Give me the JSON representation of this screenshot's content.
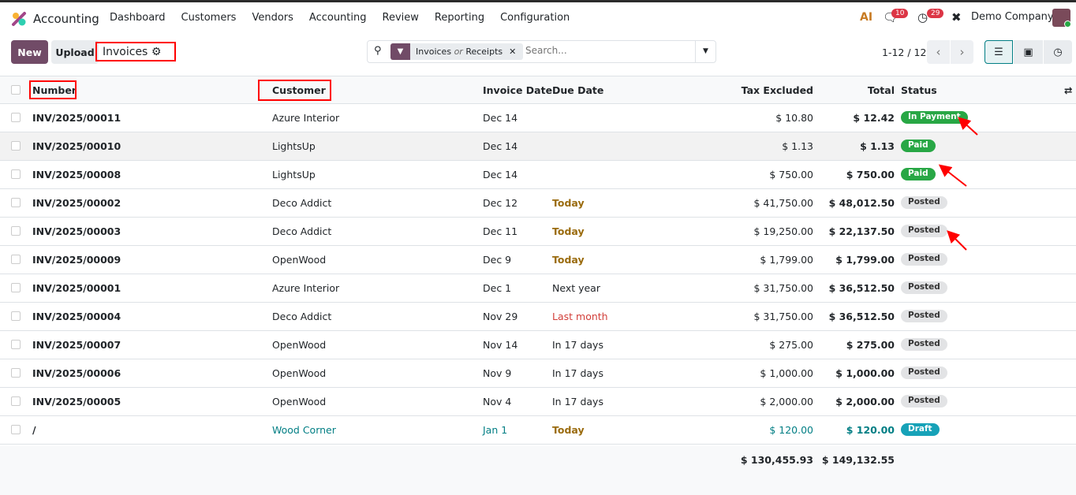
{
  "app": {
    "name": "Accounting",
    "menu": [
      "Dashboard",
      "Customers",
      "Vendors",
      "Accounting",
      "Review",
      "Reporting",
      "Configuration"
    ]
  },
  "systray": {
    "ai_label": "AI",
    "messages_count": "10",
    "activities_count": "29",
    "company": "Demo Company"
  },
  "control": {
    "new_label": "New",
    "upload_label": "Upload",
    "title": "Invoices",
    "search_facet": "Invoices",
    "search_facet_or": "or",
    "search_facet_2": "Receipts",
    "search_placeholder": "Search...",
    "pager": "1-12 / 12"
  },
  "columns": {
    "number": "Number",
    "customer": "Customer",
    "invoice_date": "Invoice Date",
    "due_date": "Due Date",
    "tax_excluded": "Tax Excluded",
    "total": "Total",
    "status": "Status"
  },
  "rows": [
    {
      "number": "INV/2025/00011",
      "customer": "Azure Interior",
      "invoice_date": "Dec 14",
      "due_date": "",
      "tax_excluded": "$ 10.80",
      "total": "$ 12.42",
      "status": "In Payment"
    },
    {
      "number": "INV/2025/00010",
      "customer": "LightsUp",
      "invoice_date": "Dec 14",
      "due_date": "",
      "tax_excluded": "$ 1.13",
      "total": "$ 1.13",
      "status": "Paid"
    },
    {
      "number": "INV/2025/00008",
      "customer": "LightsUp",
      "invoice_date": "Dec 14",
      "due_date": "",
      "tax_excluded": "$ 750.00",
      "total": "$ 750.00",
      "status": "Paid"
    },
    {
      "number": "INV/2025/00002",
      "customer": "Deco Addict",
      "invoice_date": "Dec 12",
      "due_date": "Today",
      "tax_excluded": "$ 41,750.00",
      "total": "$ 48,012.50",
      "status": "Posted"
    },
    {
      "number": "INV/2025/00003",
      "customer": "Deco Addict",
      "invoice_date": "Dec 11",
      "due_date": "Today",
      "tax_excluded": "$ 19,250.00",
      "total": "$ 22,137.50",
      "status": "Posted"
    },
    {
      "number": "INV/2025/00009",
      "customer": "OpenWood",
      "invoice_date": "Dec 9",
      "due_date": "Today",
      "tax_excluded": "$ 1,799.00",
      "total": "$ 1,799.00",
      "status": "Posted"
    },
    {
      "number": "INV/2025/00001",
      "customer": "Azure Interior",
      "invoice_date": "Dec 1",
      "due_date": "Next year",
      "tax_excluded": "$ 31,750.00",
      "total": "$ 36,512.50",
      "status": "Posted"
    },
    {
      "number": "INV/2025/00004",
      "customer": "Deco Addict",
      "invoice_date": "Nov 29",
      "due_date": "Last month",
      "tax_excluded": "$ 31,750.00",
      "total": "$ 36,512.50",
      "status": "Posted"
    },
    {
      "number": "INV/2025/00007",
      "customer": "OpenWood",
      "invoice_date": "Nov 14",
      "due_date": "In 17 days",
      "tax_excluded": "$ 275.00",
      "total": "$ 275.00",
      "status": "Posted"
    },
    {
      "number": "INV/2025/00006",
      "customer": "OpenWood",
      "invoice_date": "Nov 9",
      "due_date": "In 17 days",
      "tax_excluded": "$ 1,000.00",
      "total": "$ 1,000.00",
      "status": "Posted"
    },
    {
      "number": "INV/2025/00005",
      "customer": "OpenWood",
      "invoice_date": "Nov 4",
      "due_date": "In 17 days",
      "tax_excluded": "$ 2,000.00",
      "total": "$ 2,000.00",
      "status": "Posted"
    },
    {
      "number": "/",
      "customer": "Wood Corner",
      "invoice_date": "Jan 1",
      "due_date": "Today",
      "tax_excluded": "$ 120.00",
      "total": "$ 120.00",
      "status": "Draft"
    }
  ],
  "totals": {
    "tax_excluded": "$ 130,455.93",
    "total": "$ 149,132.55"
  },
  "colors": {
    "brand": "#714b67",
    "paid": "#28a745",
    "draft": "#17a2b8",
    "annotation": "#ff0000"
  }
}
